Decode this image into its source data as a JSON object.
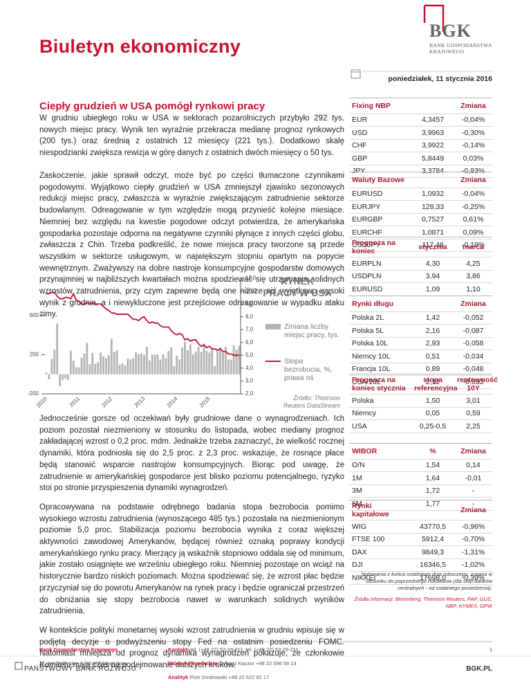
{
  "header": {
    "title": "Biuletyn ekonomiczny",
    "logo": "BGK",
    "logo_sub": "BANK GOSPODARSTWA KRAJOWEGO",
    "date": "poniedziałek, 11 stycznia 2016"
  },
  "article": {
    "heading": "Ciepły grudzień w USA pomógł rynkowi pracy",
    "paragraphs": [
      "W grudniu ubiegłego roku w USA w sektorach pozarolniczych przybyło 292 tys. nowych miejsc pracy. Wynik ten wyraźnie przekracza medianę prognoz rynkowych (200 tys.) oraz średnią z ostatnich 12 miesięcy (221 tys.). Dodatkowo skalę niespodzianki zwiększa rewizja w górę danych z ostatnich dwóch miesięcy o 50 tys.",
      "Zaskoczenie, jakie sprawił odczyt, może być po części tłumaczone czynnikami pogodowymi. Wyjątkowo ciepły grudzień w USA zmniejszył zjawisko sezonowych redukcji miejsc pracy, zwłaszcza w wyraźnie zwiększającym zatrudnienie sektorze budowlanym. Odreagowanie w tym względzie mogą przynieść kolejne miesiące. Niemniej bez względu na kwestie pogodowe odczyt potwierdza, że amerykańska gospodarka pozostaje odporna na negatywne czynniki płynące z innych części globu, zwłaszcza z Chin. Trzeba podkreślić, że nowe miejsca pracy tworzone są przede wszystkim w sektorze usługowym, w największym stopniu opartym na popycie wewnętrznym. Zważywszy na dobre nastroje konsumpcyjne gospodarstw domowych przynajmniej w najbliższych kwartałach można spodziewać się utrzymania solidnych wzrostów zatrudnienia, przy czym zapewne będą one niższe niż wyjątkowo wysoki wynik z grudnia, a i niewykluczone jest przejściowe odreagowanie w wypadku ataku zimy.",
      "Jednocześnie gorsze od oczekiwań były grudniowe dane o wynagrodzeniach. Ich poziom pozostał niezmieniony w stosunku do listopada, wobec mediany prognoz zakładającej wzrost o 0,2 proc. mdm. Jednakże trzeba zaznaczyć, że wielkość rocznej dynamiki, która podniosła się do 2,5 proc. z 2,3 proc. wskazuje, że rosnące płace będą stanowić wsparcie nastrojów konsumpcyjnych. Biorąc pod uwagę, że zatrudnienie w amerykańskiej gospodarce jest blisko poziomu potencjalnego, ryzyko stoi po stronie przyspieszenia dynamiki wynagrodzeń.",
      "Opracowywana na podstawie odrębnego badania stopa bezrobocia pomimo wysokiego wzrostu zatrudnienia (wynoszącego 485 tys.) pozostała na niezmienionym poziomie 5,0 proc. Stabilizacja poziomu bezrobocia wynika z coraz większej aktywności zawodowej Amerykanów, będącej również oznaką poprawy kondycji amerykańskiego rynku pracy. Mierzący ją wskaźnik stopniowo oddala się od minimum, jakie zostało osiągnięte we wrześniu ubiegłego roku. Niemniej pozostaje on wciąż na historycznie bardzo niskich poziomach. Można spodziewać się, że wzrost płac będzie przyczyniał się do powrotu Amerykanów na rynek pracy i będzie ograniczał przestrzeń do obniżania się stopy bezrobocia nawet w warunkach solidnych wyników zatrudnienia.",
      "W kontekście polityki monetarnej wysoki wzrost zatrudnienia w grudniu wpisuje się w podjętą decyzje o podwyższeniu stopy Fed na ostatnim posiedzeniu FOMC. Natomiast mniejsza od prognoz dynamika wynagrodzeń pokazuje, że członkowie Komitetu mają czas na podejmowanie dalszych kroków."
    ]
  },
  "chart_data": {
    "type": "bar",
    "title": "RYNEK PRACY W USA",
    "source": "Źródło: Thomson Reuters DataStream",
    "categories": [
      "2010",
      null,
      null,
      null,
      null,
      null,
      null,
      null,
      null,
      null,
      null,
      null,
      "2011",
      null,
      null,
      null,
      null,
      null,
      null,
      null,
      null,
      null,
      null,
      null,
      "2012",
      null,
      null,
      null,
      null,
      null,
      null,
      null,
      null,
      null,
      null,
      null,
      "2013",
      null,
      null,
      null,
      null,
      null,
      null,
      null,
      null,
      null,
      null,
      null,
      "2014",
      null,
      null,
      null,
      null,
      null,
      null,
      null,
      null,
      null,
      null,
      null,
      "2015",
      null,
      null,
      null,
      null,
      null,
      null,
      null,
      null,
      null,
      null,
      null
    ],
    "series": [
      {
        "name": "Zmiana liczby miejsc pracy, tys.",
        "color": "#b3b3b3",
        "values": [
          18,
          -50,
          156,
          251,
          516,
          -122,
          -61,
          -42,
          -57,
          241,
          137,
          71,
          70,
          168,
          212,
          322,
          102,
          217,
          106,
          122,
          221,
          183,
          164,
          196,
          360,
          226,
          243,
          96,
          110,
          88,
          160,
          150,
          161,
          225,
          203,
          214,
          197,
          280,
          141,
          203,
          199,
          201,
          149,
          202,
          164,
          237,
          274,
          84,
          190,
          151,
          272,
          329,
          246,
          304,
          202,
          230,
          280,
          227,
          312,
          239,
          221,
          265,
          84,
          251,
          273,
          228,
          277,
          150,
          149,
          295,
          252,
          292
        ]
      },
      {
        "name": "Stopa bezrobocia, %, prawa oś",
        "color": "#c8102e",
        "type": "line",
        "axis": "y2",
        "values": [
          9.8,
          9.8,
          9.9,
          9.9,
          9.6,
          9.4,
          9.4,
          9.5,
          9.5,
          9.4,
          9.8,
          9.3,
          9.2,
          9.0,
          9.0,
          9.1,
          9.0,
          9.1,
          9.0,
          9.0,
          9.0,
          8.8,
          8.6,
          8.5,
          8.3,
          8.3,
          8.2,
          8.2,
          8.2,
          8.2,
          8.2,
          8.0,
          7.8,
          7.8,
          7.7,
          7.9,
          8.0,
          7.7,
          7.5,
          7.6,
          7.5,
          7.5,
          7.3,
          7.2,
          7.2,
          7.2,
          6.9,
          6.7,
          6.6,
          6.7,
          6.6,
          6.2,
          6.3,
          6.1,
          6.2,
          6.2,
          5.9,
          5.7,
          5.8,
          5.6,
          5.7,
          5.5,
          5.5,
          5.4,
          5.5,
          5.3,
          5.3,
          5.1,
          5.1,
          5.0,
          5.0,
          5.0
        ]
      }
    ],
    "ylim": [
      -200,
      980
    ],
    "yticks": [
      -200,
      200,
      600
    ],
    "y2lim": [
      2,
      11
    ],
    "y2ticks": [
      {
        "value": 2,
        "label": "2,0"
      },
      {
        "value": 3,
        "label": "3,0"
      },
      {
        "value": 4,
        "label": "4,0"
      },
      {
        "value": 5,
        "label": "5,0"
      },
      {
        "value": 6,
        "label": "6,0"
      },
      {
        "value": 7,
        "label": "7,0"
      },
      {
        "value": 8,
        "label": "8,0"
      },
      {
        "value": 9,
        "label": "9,0"
      },
      {
        "value": 10,
        "label": "10,0"
      },
      {
        "value": 11,
        "label": "11,0"
      }
    ],
    "grid": false
  },
  "tables": [
    {
      "header": [
        "Fixing NBP",
        "Zmiana"
      ],
      "rows": [
        [
          "EUR",
          "4,3457",
          "-0,04%"
        ],
        [
          "USD",
          "3,9963",
          "-0,30%"
        ],
        [
          "CHF",
          "3,9922",
          "-0,14%"
        ],
        [
          "GBP",
          "5,8449",
          "0,03%"
        ],
        [
          "JPY",
          "3,3784",
          "-0,93%"
        ]
      ]
    },
    {
      "header": [
        "Waluty Bazowe",
        "Zmiana"
      ],
      "rows": [
        [
          "EURUSD",
          "1,0932",
          "-0,04%"
        ],
        [
          "EURJPY",
          "128,33",
          "-0,25%"
        ],
        [
          "EURGBP",
          "0,7527",
          "0,61%"
        ],
        [
          "EURCHF",
          "1,0871",
          "0,09%"
        ],
        [
          "USDJPY",
          "117,46",
          "-0,19%"
        ]
      ]
    },
    {
      "header": [
        "Prognoza na koniec",
        "stycznia",
        "marca"
      ],
      "rows": [
        [
          "EURPLN",
          "4,30",
          "4,25"
        ],
        [
          "USDPLN",
          "3,94",
          "3,86"
        ],
        [
          "EURUSD",
          "1,09",
          "1,10"
        ]
      ]
    },
    {
      "header": [
        "Rynki długu",
        "Zmiana"
      ],
      "rows": [
        [
          "Polska 2L",
          "1,42",
          "-0,052"
        ],
        [
          "Polska 5L",
          "2,16",
          "-0,087"
        ],
        [
          "Polska 10L",
          "2,93",
          "-0,058"
        ],
        [
          "Niemcy 10L",
          "0,51",
          "-0,034"
        ],
        [
          "Francja 10L",
          "0,89",
          "-0,048"
        ],
        [
          "USA 10L",
          "2,12",
          "-0,033"
        ]
      ]
    },
    {
      "header": [
        "Prognoza na koniec stycznia",
        "stopa referencyjna",
        "rentowność 10Y"
      ],
      "rows": [
        [
          "Polska",
          "1,50",
          "3,01"
        ],
        [
          "Niemcy",
          "0,05",
          "0,59"
        ],
        [
          "USA",
          "0,25-0,5",
          "2,25"
        ]
      ]
    },
    {
      "header": [
        "WIBOR",
        "%",
        "Zmiana"
      ],
      "rows": [
        [
          "O/N",
          "1,54",
          "0,14"
        ],
        [
          "1M",
          "1,64",
          "-0,01"
        ],
        [
          "3M",
          "1,72",
          "-"
        ],
        [
          "6M",
          "1,77",
          "-"
        ]
      ]
    },
    {
      "header": [
        "Rynki kapitałowe",
        "Zmiana"
      ],
      "rows": [
        [
          "WIG",
          "43770,5",
          "-0,96%"
        ],
        [
          "FTSE 100",
          "5912,4",
          "-0,70%"
        ],
        [
          "DAX",
          "9849,3",
          "-1,31%"
        ],
        [
          "DJI",
          "16346,5",
          "-1,02%"
        ],
        [
          "NIKKEI",
          "17698,0",
          "-0,39%"
        ]
      ]
    }
  ],
  "notes": {
    "quotes": "Notowania z końca ostatniego dnia roboczego, zmiana w stosunku do poprzedniego notowania (dla stóp banków centralnych - od ostatniego posiedzenia).",
    "sources": "Źródła informacji: Bloomberg, Thomson Reuters, PAP, GUS, NBP, NYMEX, GPW"
  },
  "footer": {
    "bank": "Bank Gospodarstwa Krajowego",
    "address": "Al. Jerozolimskie 7, 00-955 Warszawa",
    "contacts": [
      {
        "label": "Kontakt:",
        "text": "tel. (+48 22) 52-29-211, tel. (+48 22) 52-29-211"
      },
      {
        "label": "Główny Ekonomista",
        "text": "Tomasz Kaczor +48 22 596 59 13"
      },
      {
        "label": "Analityk",
        "text": "Piotr Dmitrowski +48 22 522 92 17"
      }
    ],
    "page": "1",
    "tagline": "PAŃSTWOWY BANK ROZWOJU",
    "site": "BGK.PL"
  }
}
